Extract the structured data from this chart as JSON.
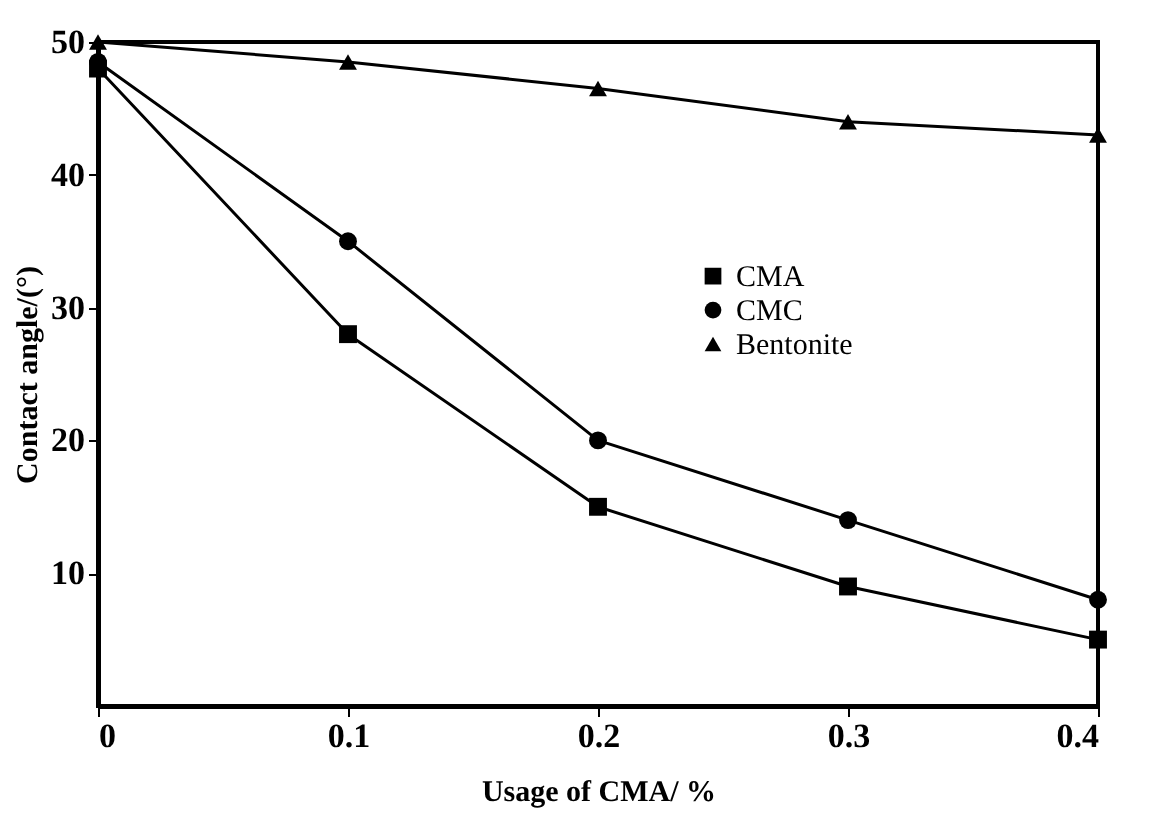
{
  "chart_data": {
    "type": "line",
    "xlabel": "Usage of CMA/ %",
    "ylabel": "Contact angle/(°)",
    "x": [
      0,
      0.1,
      0.2,
      0.3,
      0.4
    ],
    "series": [
      {
        "name": "CMA",
        "color": "#000000",
        "marker": "square",
        "values": [
          48,
          28,
          15,
          9,
          5
        ]
      },
      {
        "name": "CMC",
        "color": "#000000",
        "marker": "circle",
        "values": [
          48.5,
          35,
          20,
          14,
          8
        ]
      },
      {
        "name": "Bentonite",
        "color": "#000000",
        "marker": "triangle",
        "values": [
          50,
          48.5,
          46.5,
          44,
          43
        ]
      }
    ],
    "xlim": [
      0,
      0.4
    ],
    "xticks": [
      0,
      0.1,
      0.2,
      0.3,
      0.4
    ],
    "ylim": [
      0,
      50
    ],
    "yticks": [
      10,
      20,
      30,
      40,
      50
    ],
    "grid": false,
    "legend": "right",
    "line_style": "solid"
  }
}
